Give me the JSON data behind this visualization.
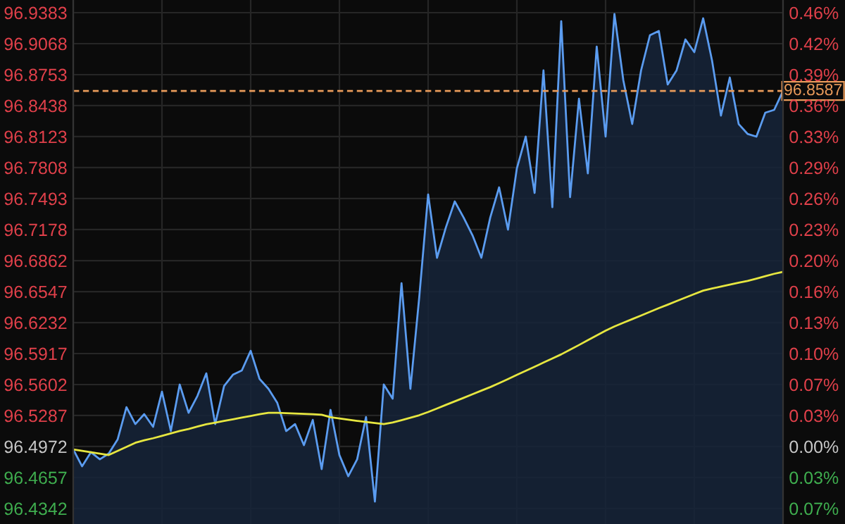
{
  "chart_data": {
    "type": "line",
    "categories": [
      null,
      null,
      null,
      null,
      null,
      null,
      null,
      null,
      null,
      null,
      null,
      null,
      null,
      null,
      null,
      null,
      null,
      null,
      null,
      null,
      null,
      null,
      null,
      null,
      null,
      null,
      null,
      null,
      null,
      null,
      null,
      null,
      null,
      null,
      null,
      null,
      null,
      null,
      null,
      null,
      null,
      null,
      null,
      null,
      null,
      null,
      null,
      null,
      null,
      null,
      null,
      null,
      null,
      null,
      null,
      null,
      null,
      null,
      null,
      null,
      null,
      null,
      null,
      null,
      null,
      null,
      null,
      null,
      null,
      null,
      null,
      null,
      null,
      null,
      null,
      null,
      null,
      null,
      null,
      null,
      null
    ],
    "ylim": [
      96.4184,
      96.9512
    ],
    "yticks": [
      96.9383,
      96.9068,
      96.8753,
      96.8438,
      96.8123,
      96.7808,
      96.7493,
      96.7178,
      96.6862,
      96.6547,
      96.6232,
      96.5917,
      96.5602,
      96.5287,
      96.4972,
      96.4657,
      96.4342
    ],
    "y2lim": [
      -0.0817,
      0.4705
    ],
    "y2ticks": [
      {
        "value": 0.4571,
        "label": "0.46%"
      },
      {
        "value": 0.4245,
        "label": "0.42%"
      },
      {
        "value": 0.3918,
        "label": "0.39%"
      },
      {
        "value": 0.3592,
        "label": "0.36%"
      },
      {
        "value": 0.3265,
        "label": "0.33%"
      },
      {
        "value": 0.2939,
        "label": "0.29%"
      },
      {
        "value": 0.2613,
        "label": "0.26%"
      },
      {
        "value": 0.2286,
        "label": "0.23%"
      },
      {
        "value": 0.1959,
        "label": "0.20%"
      },
      {
        "value": 0.1632,
        "label": "0.16%"
      },
      {
        "value": 0.1306,
        "label": "0.13%"
      },
      {
        "value": 0.0979,
        "label": "0.10%"
      },
      {
        "value": 0.0653,
        "label": "0.07%"
      },
      {
        "value": 0.0326,
        "label": "0.03%"
      },
      {
        "value": 0,
        "label": "0.00%"
      },
      {
        "value": -0.0326,
        "label": "0.03%"
      },
      {
        "value": -0.0653,
        "label": "0.07%"
      }
    ],
    "grid": true,
    "ref_lines": [
      {
        "axis": "y",
        "value": 96.8587,
        "label": "96.8587",
        "color": "#e89a5a",
        "line_style": "dashed"
      }
    ],
    "series": [
      {
        "type": "area",
        "color": "#5b9cf0",
        "values": [
          96.4943,
          96.4771,
          96.4914,
          96.4842,
          96.49,
          96.5043,
          96.5372,
          96.52,
          96.5301,
          96.5172,
          96.553,
          96.5129,
          96.5602,
          96.5315,
          96.5487,
          96.5716,
          96.52,
          96.5587,
          96.5702,
          96.5745,
          96.5945,
          96.5659,
          96.5559,
          96.5415,
          96.5129,
          96.52,
          96.4986,
          96.5243,
          96.4742,
          96.5344,
          96.4885,
          96.467,
          96.4842,
          96.5272,
          96.4413,
          96.5602,
          96.5458,
          96.6633,
          96.5559,
          96.649,
          96.7535,
          96.6891,
          96.72,
          96.7464,
          96.73,
          96.712,
          96.6891,
          96.73,
          96.7607,
          96.7177,
          96.78,
          96.8123,
          96.755,
          96.8796,
          96.7406,
          96.9297,
          96.7507,
          96.8509,
          96.775,
          96.9039,
          96.8123,
          96.9369,
          96.8696,
          96.8251,
          96.8796,
          96.9154,
          96.9197,
          96.8653,
          96.8796,
          96.9111,
          96.8982,
          96.9326,
          96.8896,
          96.8337,
          96.8724,
          96.8251,
          96.8151,
          96.8123,
          96.8366,
          96.8395,
          96.8587
        ]
      },
      {
        "color": "#e6e640",
        "values": [
          96.4943,
          96.4928,
          96.4914,
          96.4899,
          96.4885,
          96.4927,
          96.4968,
          96.501,
          96.5035,
          96.5056,
          96.508,
          96.5105,
          96.513,
          96.515,
          96.5175,
          96.5198,
          96.5215,
          96.5232,
          96.5249,
          96.5266,
          96.5283,
          96.53,
          96.5315,
          96.5314,
          96.5311,
          96.5308,
          96.5304,
          96.53,
          96.5295,
          96.527,
          96.5257,
          96.5245,
          96.5233,
          96.5222,
          96.521,
          96.52,
          96.5216,
          96.524,
          96.5265,
          96.529,
          96.5323,
          96.5359,
          96.5395,
          96.5431,
          96.5467,
          96.5503,
          96.554,
          96.5576,
          96.5616,
          96.5658,
          96.57,
          96.5741,
          96.5783,
          96.5825,
          96.5867,
          96.5909,
          96.5956,
          96.6004,
          96.6053,
          96.6101,
          96.615,
          96.6193,
          96.623,
          96.6267,
          96.6304,
          96.6341,
          96.6379,
          96.6414,
          96.645,
          96.6486,
          96.6522,
          96.6557,
          96.6579,
          96.6598,
          96.6618,
          96.6637,
          96.6656,
          96.6679,
          96.6704,
          96.6728,
          96.6748
        ]
      }
    ]
  }
}
